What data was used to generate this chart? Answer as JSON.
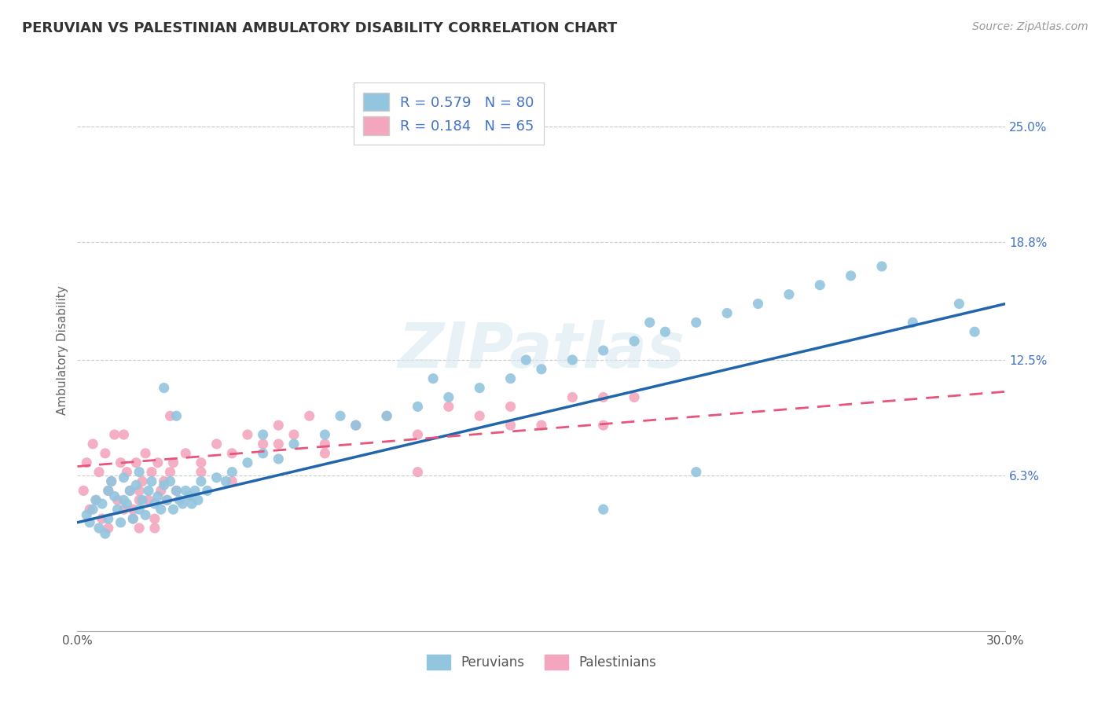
{
  "title": "PERUVIAN VS PALESTINIAN AMBULATORY DISABILITY CORRELATION CHART",
  "source_text": "Source: ZipAtlas.com",
  "ylabel": "Ambulatory Disability",
  "xlim": [
    0.0,
    30.0
  ],
  "ylim": [
    -2.0,
    28.0
  ],
  "yticks": [
    6.3,
    12.5,
    18.8,
    25.0
  ],
  "ytick_labels": [
    "6.3%",
    "12.5%",
    "18.8%",
    "25.0%"
  ],
  "xtick_labels": [
    "0.0%",
    "30.0%"
  ],
  "legend_R1": "R = 0.579",
  "legend_N1": "N = 80",
  "legend_R2": "R = 0.184",
  "legend_N2": "N = 65",
  "legend_label1": "Peruvians",
  "legend_label2": "Palestinians",
  "blue_color": "#92c5de",
  "pink_color": "#f4a6be",
  "blue_line_color": "#2166ac",
  "pink_line_color": "#e8547a",
  "text_color": "#4472c4",
  "background_color": "#ffffff",
  "watermark": "ZIPatlas",
  "blue_line_x": [
    0.0,
    30.0
  ],
  "blue_line_y": [
    3.8,
    15.5
  ],
  "pink_line_x": [
    0.0,
    30.0
  ],
  "pink_line_y": [
    6.8,
    10.8
  ],
  "peruvian_x": [
    0.3,
    0.4,
    0.5,
    0.6,
    0.7,
    0.8,
    0.9,
    1.0,
    1.0,
    1.1,
    1.2,
    1.3,
    1.4,
    1.5,
    1.5,
    1.6,
    1.7,
    1.8,
    1.9,
    2.0,
    2.0,
    2.1,
    2.2,
    2.3,
    2.4,
    2.5,
    2.6,
    2.7,
    2.8,
    2.9,
    3.0,
    3.1,
    3.2,
    3.3,
    3.4,
    3.5,
    3.6,
    3.7,
    3.8,
    3.9,
    4.0,
    4.2,
    4.5,
    4.8,
    5.0,
    5.5,
    6.0,
    6.5,
    7.0,
    8.0,
    9.0,
    10.0,
    11.0,
    12.0,
    13.0,
    14.0,
    15.0,
    16.0,
    17.0,
    18.0,
    19.0,
    20.0,
    21.0,
    22.0,
    23.0,
    24.0,
    25.0,
    26.0,
    27.0,
    28.5,
    29.0,
    18.5,
    14.5,
    11.5,
    8.5,
    20.0,
    17.0,
    6.0,
    3.2,
    2.8
  ],
  "peruvian_y": [
    4.2,
    3.8,
    4.5,
    5.0,
    3.5,
    4.8,
    3.2,
    5.5,
    4.0,
    6.0,
    5.2,
    4.5,
    3.8,
    5.0,
    6.2,
    4.8,
    5.5,
    4.0,
    5.8,
    4.5,
    6.5,
    5.0,
    4.2,
    5.5,
    6.0,
    4.8,
    5.2,
    4.5,
    5.8,
    5.0,
    6.0,
    4.5,
    5.5,
    5.0,
    4.8,
    5.5,
    5.2,
    4.8,
    5.5,
    5.0,
    6.0,
    5.5,
    6.2,
    6.0,
    6.5,
    7.0,
    7.5,
    7.2,
    8.0,
    8.5,
    9.0,
    9.5,
    10.0,
    10.5,
    11.0,
    11.5,
    12.0,
    12.5,
    13.0,
    13.5,
    14.0,
    14.5,
    15.0,
    15.5,
    16.0,
    16.5,
    17.0,
    17.5,
    14.5,
    15.5,
    14.0,
    14.5,
    12.5,
    11.5,
    9.5,
    6.5,
    4.5,
    8.5,
    9.5,
    11.0
  ],
  "palestinian_x": [
    0.2,
    0.3,
    0.4,
    0.5,
    0.6,
    0.7,
    0.8,
    0.9,
    1.0,
    1.0,
    1.1,
    1.2,
    1.3,
    1.4,
    1.5,
    1.6,
    1.7,
    1.8,
    1.9,
    2.0,
    2.0,
    2.1,
    2.2,
    2.3,
    2.4,
    2.5,
    2.6,
    2.7,
    2.8,
    2.9,
    3.0,
    3.1,
    3.2,
    3.5,
    4.0,
    4.5,
    5.0,
    5.5,
    6.0,
    6.5,
    7.0,
    7.5,
    8.0,
    9.0,
    10.0,
    11.0,
    12.0,
    13.0,
    14.0,
    15.0,
    16.0,
    17.0,
    18.0,
    1.5,
    2.0,
    3.0,
    4.0,
    5.0,
    6.5,
    8.0,
    11.0,
    14.0,
    17.0,
    2.5,
    1.8
  ],
  "palestinian_y": [
    5.5,
    7.0,
    4.5,
    8.0,
    5.0,
    6.5,
    4.0,
    7.5,
    5.5,
    3.5,
    6.0,
    8.5,
    5.0,
    7.0,
    4.5,
    6.5,
    5.5,
    4.0,
    7.0,
    5.5,
    3.5,
    6.0,
    7.5,
    5.0,
    6.5,
    4.0,
    7.0,
    5.5,
    6.0,
    5.0,
    6.5,
    7.0,
    5.5,
    7.5,
    6.5,
    8.0,
    7.5,
    8.5,
    8.0,
    9.0,
    8.5,
    9.5,
    8.0,
    9.0,
    9.5,
    8.5,
    10.0,
    9.5,
    10.0,
    9.0,
    10.5,
    9.0,
    10.5,
    8.5,
    5.0,
    9.5,
    7.0,
    6.0,
    8.0,
    7.5,
    6.5,
    9.0,
    10.5,
    3.5,
    4.5
  ]
}
